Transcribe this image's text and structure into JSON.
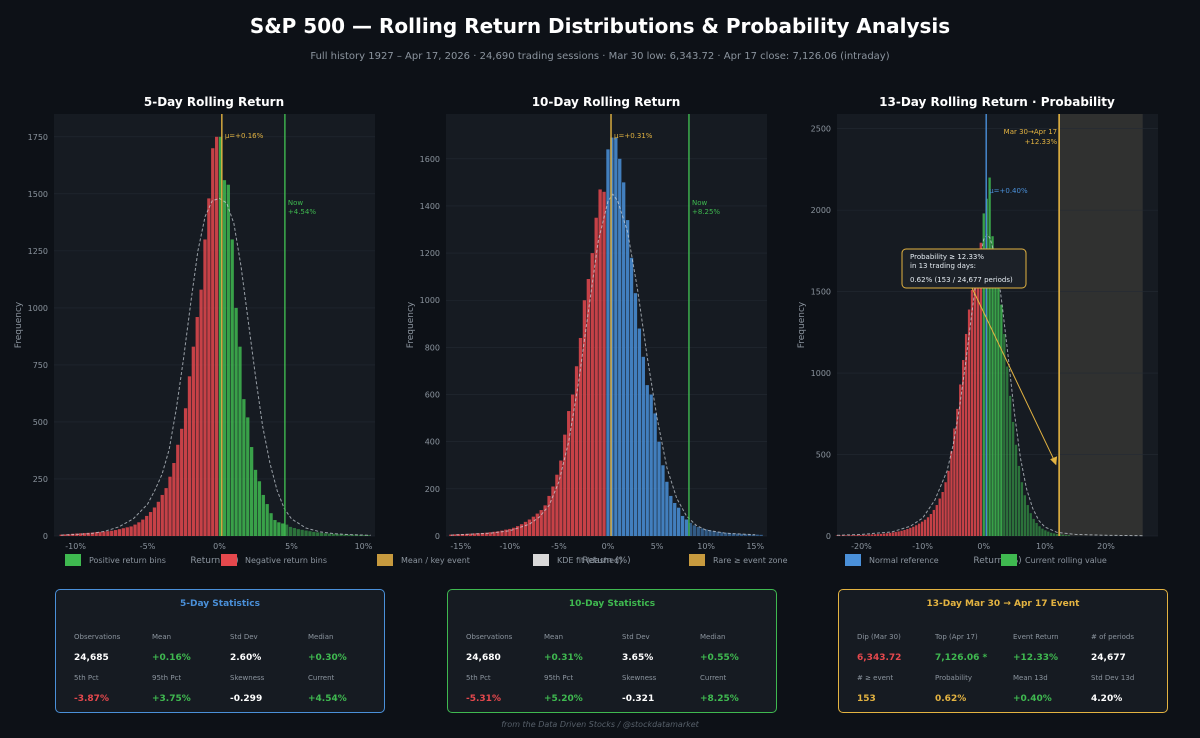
{
  "header": {
    "title": "S&P 500 — Rolling Return Distributions & Probability Analysis",
    "subtitle": "Full history 1927 – Apr 17, 2026  ·  24,690 trading sessions  ·  Mar 30 low: 6,343.72  ·  Apr 17 close: 7,126.06  (intraday)"
  },
  "colors": {
    "bg": "#0d1117",
    "panel": "#161b22",
    "grid": "#232a33",
    "axis_text": "#8b949e",
    "positive": "#3fb950",
    "negative": "#e5484d",
    "normal": "#4a90d9",
    "gold": "#e3b341",
    "kde": "#d0d7de",
    "rare_zone": "#3a3a36",
    "stats_5": "#4a90d9",
    "stats_10": "#3fb950",
    "stats_13": "#e3b341",
    "value_white": "#ffffff"
  },
  "chart_data": [
    {
      "type": "bar",
      "title": "5-Day Rolling Return",
      "xlabel": "Return (%)",
      "ylabel": "Frequency",
      "xlim": [
        -11.5,
        10.8
      ],
      "ylim": [
        0,
        1850
      ],
      "xticks": [
        -10,
        -5,
        0,
        5,
        10
      ],
      "xtick_labels": [
        "-10%",
        "-5%",
        "0%",
        "5%",
        "10%"
      ],
      "yticks": [
        0,
        250,
        500,
        750,
        1000,
        1250,
        1500,
        1750
      ],
      "ytick_labels": [
        "0",
        "250",
        "500",
        "750",
        "1000",
        "1250",
        "1500",
        "1750"
      ],
      "bin_width": 0.27,
      "bin_centers": [
        -11.0,
        -10.73,
        -10.46,
        -10.19,
        -9.92,
        -9.65,
        -9.38,
        -9.11,
        -8.84,
        -8.57,
        -8.3,
        -8.03,
        -7.76,
        -7.49,
        -7.22,
        -6.95,
        -6.68,
        -6.41,
        -6.14,
        -5.87,
        -5.6,
        -5.33,
        -5.06,
        -4.79,
        -4.52,
        -4.25,
        -3.98,
        -3.71,
        -3.44,
        -3.17,
        -2.9,
        -2.63,
        -2.36,
        -2.09,
        -1.82,
        -1.55,
        -1.28,
        -1.01,
        -0.74,
        -0.47,
        -0.2,
        0.07,
        0.34,
        0.61,
        0.88,
        1.15,
        1.42,
        1.69,
        1.96,
        2.23,
        2.5,
        2.77,
        3.04,
        3.31,
        3.58,
        3.85,
        4.12,
        4.39,
        4.66,
        4.93,
        5.2,
        5.47,
        5.74,
        6.01,
        6.28,
        6.55,
        6.82,
        7.09,
        7.36,
        7.63,
        7.9,
        8.17,
        8.44,
        8.71,
        8.98,
        9.25,
        9.52,
        9.79,
        10.06,
        10.33
      ],
      "values": [
        6,
        7,
        8,
        10,
        11,
        12,
        13,
        14,
        15,
        17,
        18,
        20,
        21,
        23,
        26,
        30,
        34,
        38,
        42,
        50,
        60,
        72,
        88,
        105,
        125,
        150,
        180,
        210,
        260,
        320,
        400,
        470,
        560,
        700,
        830,
        960,
        1080,
        1300,
        1480,
        1700,
        1750,
        1750,
        1560,
        1540,
        1300,
        1000,
        830,
        600,
        520,
        390,
        290,
        240,
        180,
        140,
        100,
        70,
        60,
        55,
        50,
        40,
        35,
        30,
        27,
        24,
        21,
        18,
        16,
        14,
        12,
        11,
        10,
        9,
        8,
        7,
        6,
        6,
        5,
        5,
        4,
        4
      ],
      "kde": [
        [
          -11,
          4
        ],
        [
          -9,
          10
        ],
        [
          -8,
          20
        ],
        [
          -7,
          40
        ],
        [
          -6,
          75
        ],
        [
          -5,
          140
        ],
        [
          -4.5,
          200
        ],
        [
          -4,
          270
        ],
        [
          -3.5,
          380
        ],
        [
          -3,
          560
        ],
        [
          -2.5,
          780
        ],
        [
          -2,
          1020
        ],
        [
          -1.5,
          1250
        ],
        [
          -1,
          1400
        ],
        [
          -0.5,
          1470
        ],
        [
          0,
          1480
        ],
        [
          0.5,
          1460
        ],
        [
          1,
          1370
        ],
        [
          1.5,
          1180
        ],
        [
          2,
          940
        ],
        [
          2.5,
          700
        ],
        [
          3,
          480
        ],
        [
          3.5,
          320
        ],
        [
          4,
          200
        ],
        [
          4.5,
          120
        ],
        [
          5,
          75
        ],
        [
          6,
          35
        ],
        [
          7,
          18
        ],
        [
          8,
          10
        ],
        [
          9,
          6
        ],
        [
          10.5,
          3
        ]
      ],
      "mean": 0.16,
      "mean_label": "μ=+0.16%",
      "now": 4.54,
      "now_label": "Now",
      "now_value_label": "+4.54%"
    },
    {
      "type": "bar",
      "title": "10-Day Rolling Return",
      "xlabel": "Return (%)",
      "ylabel": "Frequency",
      "xlim": [
        -16.5,
        16.2
      ],
      "ylim": [
        0,
        1790
      ],
      "xticks": [
        -15,
        -10,
        -5,
        0,
        5,
        10,
        15
      ],
      "xtick_labels": [
        "-15%",
        "-10%",
        "-5%",
        "0%",
        "5%",
        "10%",
        "15%"
      ],
      "yticks": [
        0,
        200,
        400,
        600,
        800,
        1000,
        1200,
        1400,
        1600
      ],
      "ytick_labels": [
        "0",
        "200",
        "400",
        "600",
        "800",
        "1000",
        "1200",
        "1400",
        "1600"
      ],
      "bin_width": 0.4,
      "bin_centers": [
        -16.0,
        -15.6,
        -15.2,
        -14.8,
        -14.4,
        -14.0,
        -13.6,
        -13.2,
        -12.8,
        -12.4,
        -12.0,
        -11.6,
        -11.2,
        -10.8,
        -10.4,
        -10.0,
        -9.6,
        -9.2,
        -8.8,
        -8.4,
        -8.0,
        -7.6,
        -7.2,
        -6.8,
        -6.4,
        -6.0,
        -5.6,
        -5.2,
        -4.8,
        -4.4,
        -4.0,
        -3.6,
        -3.2,
        -2.8,
        -2.4,
        -2.0,
        -1.6,
        -1.2,
        -0.8,
        -0.4,
        0.0,
        0.4,
        0.8,
        1.2,
        1.6,
        2.0,
        2.4,
        2.8,
        3.2,
        3.6,
        4.0,
        4.4,
        4.8,
        5.2,
        5.6,
        6.0,
        6.4,
        6.8,
        7.2,
        7.6,
        8.0,
        8.4,
        8.8,
        9.2,
        9.6,
        10.0,
        10.4,
        10.8,
        11.2,
        11.6,
        12.0,
        12.4,
        12.8,
        13.2,
        13.6,
        14.0,
        14.4,
        14.8,
        15.2,
        15.6
      ],
      "values": [
        6,
        7,
        8,
        8,
        9,
        10,
        11,
        12,
        13,
        14,
        16,
        18,
        20,
        23,
        27,
        30,
        35,
        42,
        50,
        60,
        70,
        82,
        95,
        110,
        130,
        170,
        210,
        260,
        320,
        430,
        530,
        600,
        720,
        840,
        1000,
        1090,
        1200,
        1350,
        1470,
        1460,
        1640,
        1690,
        1690,
        1600,
        1500,
        1340,
        1180,
        1030,
        880,
        760,
        640,
        600,
        520,
        400,
        300,
        230,
        170,
        140,
        120,
        85,
        70,
        56,
        45,
        38,
        32,
        28,
        24,
        21,
        18,
        16,
        14,
        12,
        11,
        10,
        9,
        8,
        7,
        6,
        6,
        5
      ],
      "kde": [
        [
          -16,
          4
        ],
        [
          -12,
          12
        ],
        [
          -10,
          22
        ],
        [
          -8,
          50
        ],
        [
          -7,
          80
        ],
        [
          -6,
          130
        ],
        [
          -5,
          230
        ],
        [
          -4,
          400
        ],
        [
          -3,
          650
        ],
        [
          -2,
          950
        ],
        [
          -1,
          1250
        ],
        [
          0,
          1420
        ],
        [
          0.5,
          1450
        ],
        [
          1,
          1420
        ],
        [
          2,
          1290
        ],
        [
          3,
          1050
        ],
        [
          4,
          760
        ],
        [
          5,
          500
        ],
        [
          6,
          290
        ],
        [
          7,
          160
        ],
        [
          8,
          85
        ],
        [
          9,
          45
        ],
        [
          10,
          25
        ],
        [
          12,
          12
        ],
        [
          15,
          5
        ]
      ],
      "mean": 0.31,
      "mean_label": "μ=+0.31%",
      "now": 8.25,
      "now_label": "Now",
      "now_value_label": "+8.25%"
    },
    {
      "type": "bar",
      "title": "13-Day Rolling Return  ·  Probability",
      "xlabel": "Return (%)",
      "ylabel": "Frequency",
      "xlim": [
        -24,
        28.5
      ],
      "ylim": [
        0,
        2590
      ],
      "xticks": [
        -20,
        -10,
        0,
        10,
        20
      ],
      "xtick_labels": [
        "-20%",
        "-10%",
        "0%",
        "10%",
        "20%"
      ],
      "yticks": [
        0,
        500,
        1000,
        1500,
        2000,
        2500
      ],
      "ytick_labels": [
        "0",
        "500",
        "1000",
        "1500",
        "2000",
        "2500"
      ],
      "bin_width": 0.48,
      "bin_centers": [
        -24.0,
        -23.52,
        -23.04,
        -22.56,
        -22.08,
        -21.6,
        -21.12,
        -20.64,
        -20.16,
        -19.68,
        -19.2,
        -18.72,
        -18.24,
        -17.76,
        -17.28,
        -16.8,
        -16.32,
        -15.84,
        -15.36,
        -14.88,
        -14.4,
        -13.92,
        -13.44,
        -12.96,
        -12.48,
        -12.0,
        -11.52,
        -11.04,
        -10.56,
        -10.08,
        -9.6,
        -9.12,
        -8.64,
        -8.16,
        -7.68,
        -7.2,
        -6.72,
        -6.24,
        -5.76,
        -5.28,
        -4.8,
        -4.32,
        -3.84,
        -3.36,
        -2.88,
        -2.4,
        -1.92,
        -1.44,
        -0.96,
        -0.48,
        0.0,
        0.48,
        0.96,
        1.44,
        1.92,
        2.4,
        2.88,
        3.36,
        3.84,
        4.32,
        4.8,
        5.28,
        5.76,
        6.24,
        6.72,
        7.2,
        7.68,
        8.16,
        8.64,
        9.12,
        9.6,
        10.08,
        10.56,
        11.04,
        11.52,
        12.0,
        12.48,
        12.96,
        13.44,
        13.92
      ],
      "values": [
        3,
        3,
        4,
        4,
        4,
        5,
        5,
        6,
        6,
        7,
        8,
        9,
        10,
        11,
        12,
        13,
        15,
        17,
        19,
        22,
        25,
        28,
        32,
        37,
        43,
        50,
        57,
        66,
        76,
        88,
        100,
        115,
        135,
        160,
        190,
        230,
        270,
        330,
        400,
        520,
        660,
        780,
        930,
        1080,
        1240,
        1390,
        1510,
        1640,
        1760,
        1800,
        1980,
        2070,
        2200,
        1840,
        1740,
        1600,
        1420,
        1240,
        1040,
        860,
        700,
        560,
        430,
        330,
        250,
        190,
        140,
        105,
        80,
        60,
        45,
        35,
        27,
        20,
        16,
        12,
        10,
        8,
        6,
        5
      ],
      "kde": [
        [
          -24,
          4
        ],
        [
          -20,
          10
        ],
        [
          -15,
          25
        ],
        [
          -12,
          60
        ],
        [
          -10,
          110
        ],
        [
          -8,
          220
        ],
        [
          -6,
          400
        ],
        [
          -5,
          560
        ],
        [
          -4,
          780
        ],
        [
          -3,
          1050
        ],
        [
          -2,
          1350
        ],
        [
          -1,
          1640
        ],
        [
          0,
          1820
        ],
        [
          0.5,
          1850
        ],
        [
          1,
          1830
        ],
        [
          2,
          1700
        ],
        [
          3,
          1420
        ],
        [
          4,
          1100
        ],
        [
          5,
          760
        ],
        [
          6,
          480
        ],
        [
          7,
          290
        ],
        [
          8,
          170
        ],
        [
          9,
          95
        ],
        [
          10,
          55
        ],
        [
          12,
          22
        ],
        [
          15,
          10
        ],
        [
          20,
          4
        ],
        [
          26,
          2
        ]
      ],
      "mean": 0.4,
      "mean_label": "μ=+0.40%",
      "event": 12.33,
      "event_label": "Mar 30→Apr 17",
      "event_value_label": "+12.33%",
      "rare_zone": [
        12.33,
        26
      ],
      "annotation": {
        "line1": "Probability ≥ 12.33%",
        "line2": "in 13 trading days:",
        "line3": "0.62%  (153 / 24,677 periods)"
      }
    }
  ],
  "legend": {
    "items": [
      {
        "label": "Positive return bins",
        "color": "#3fb950"
      },
      {
        "label": "Negative return bins",
        "color": "#e5484d"
      },
      {
        "label": "Mean / key event",
        "color": "#c79a3e"
      },
      {
        "label": "KDE fit (dashed)",
        "color": "#d9d9d9"
      },
      {
        "label": "Rare ≥ event zone",
        "color": "#c79a3e"
      },
      {
        "label": "Normal reference",
        "color": "#4a90d9"
      },
      {
        "label": "Current rolling value",
        "color": "#3fb950"
      }
    ]
  },
  "stats": {
    "panel5": {
      "title": "5-Day  Statistics",
      "labels": [
        "Observations",
        "Mean",
        "Std Dev",
        "Median",
        "5th Pct",
        "95th Pct",
        "Skewness",
        "Current"
      ],
      "values": [
        "24,685",
        "+0.16%",
        "2.60%",
        "+0.30%",
        "-3.87%",
        "+3.75%",
        "-0.299",
        "+4.54%"
      ],
      "value_colors": [
        "#ffffff",
        "#3fb950",
        "#ffffff",
        "#3fb950",
        "#e5484d",
        "#3fb950",
        "#ffffff",
        "#3fb950"
      ]
    },
    "panel10": {
      "title": "10-Day  Statistics",
      "labels": [
        "Observations",
        "Mean",
        "Std Dev",
        "Median",
        "5th Pct",
        "95th Pct",
        "Skewness",
        "Current"
      ],
      "values": [
        "24,680",
        "+0.31%",
        "3.65%",
        "+0.55%",
        "-5.31%",
        "+5.20%",
        "-0.321",
        "+8.25%"
      ],
      "value_colors": [
        "#ffffff",
        "#3fb950",
        "#ffffff",
        "#3fb950",
        "#e5484d",
        "#3fb950",
        "#ffffff",
        "#3fb950"
      ]
    },
    "panel13": {
      "title": "13-Day  Mar 30 → Apr 17 Event",
      "labels": [
        "Dip (Mar 30)",
        "Top (Apr 17)",
        "Event Return",
        "# of periods",
        "# ≥ event",
        "Probability",
        "Mean 13d",
        "Std Dev 13d"
      ],
      "values": [
        "6,343.72",
        "7,126.06 *",
        "+12.33%",
        "24,677",
        "153",
        "0.62%",
        "+0.40%",
        "4.20%"
      ],
      "value_colors": [
        "#e5484d",
        "#3fb950",
        "#3fb950",
        "#ffffff",
        "#e3b341",
        "#e3b341",
        "#3fb950",
        "#ffffff"
      ]
    }
  },
  "footer": "from the Data Driven Stocks / @stockdatamarket"
}
